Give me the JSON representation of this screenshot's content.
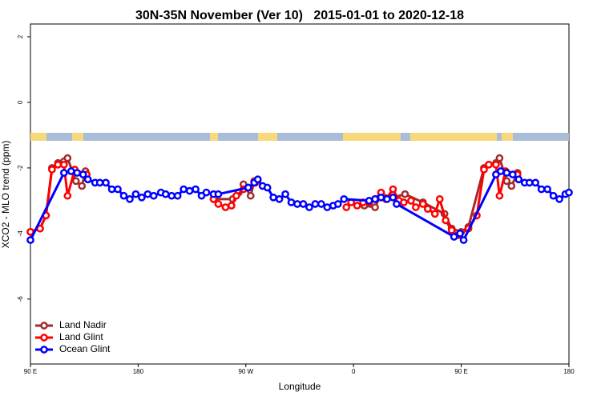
{
  "chart_data": {
    "type": "line",
    "title": "30N-35N November (Ver 10)   2015-01-01 to 2020-12-18",
    "x_label": "Longitude",
    "y_label": "XCO2 - MLO trend (ppm)",
    "xlim": [
      90,
      540
    ],
    "ylim": [
      -7.98,
      2.39
    ],
    "xticks": [
      {
        "value": 90,
        "label": "90 E"
      },
      180,
      {
        "value": 270,
        "label": "90 W"
      },
      {
        "value": 360,
        "label": "0"
      },
      {
        "value": 450,
        "label": "90 E"
      },
      {
        "value": 540,
        "label": "180"
      }
    ],
    "yticks": [
      2,
      0,
      -2,
      -4,
      -6
    ],
    "legend": "bottom-left",
    "series": [
      {
        "name": "Land Nadir",
        "color": "#a52a2a",
        "x": [
          90,
          98,
          103,
          108,
          113,
          118,
          121,
          128,
          133,
          136,
          null,
          243,
          259,
          264,
          268,
          274,
          277,
          null,
          369,
          378,
          383,
          393,
          403,
          418,
          436,
          442,
          450,
          456,
          469,
          473,
          479,
          482,
          488,
          492,
          497
        ],
        "values": [
          -3.95,
          -3.85,
          -3.45,
          -2.0,
          -1.85,
          -1.8,
          -1.7,
          -2.4,
          -2.55,
          -2.1,
          null,
          -2.95,
          -2.95,
          -2.75,
          -2.5,
          -2.85,
          -2.4,
          null,
          -3.15,
          -3.2,
          -2.8,
          -2.9,
          -2.8,
          -3.05,
          -3.4,
          -3.85,
          -3.95,
          -3.8,
          -2.0,
          -1.9,
          -1.85,
          -1.7,
          -2.4,
          -2.55,
          -2.15
        ]
      },
      {
        "name": "Land Glint",
        "color": "#ff0000",
        "x": [
          90,
          98,
          103,
          108,
          113,
          118,
          121,
          127,
          137,
          null,
          243,
          247,
          253,
          258,
          262,
          268,
          272,
          278,
          280,
          null,
          354,
          358,
          363,
          368,
          373,
          378,
          383,
          387,
          393,
          398,
          402,
          408,
          412,
          418,
          422,
          428,
          432,
          437,
          442,
          448,
          456,
          463,
          469,
          473,
          479,
          482,
          487,
          497
        ],
        "values": [
          -3.95,
          -3.85,
          -3.45,
          -2.05,
          -1.9,
          -1.9,
          -2.85,
          -2.05,
          -2.2,
          null,
          -2.95,
          -3.1,
          -3.2,
          -3.15,
          -2.85,
          -2.65,
          -2.6,
          -2.45,
          -2.35,
          null,
          -3.2,
          -3.05,
          -3.15,
          -3.05,
          -3.05,
          -2.95,
          -2.75,
          -2.95,
          -2.65,
          -3.0,
          -3.05,
          -3.0,
          -3.2,
          -3.1,
          -3.25,
          -3.4,
          -2.95,
          -3.6,
          -3.9,
          -4.05,
          -3.85,
          -3.45,
          -2.05,
          -1.9,
          -1.9,
          -2.85,
          -2.1,
          -2.2
        ]
      },
      {
        "name": "Ocean Glint",
        "color": "#0000ff",
        "x": [
          90,
          118,
          124,
          129,
          134,
          138,
          144,
          148,
          153,
          158,
          163,
          168,
          173,
          178,
          183,
          188,
          193,
          199,
          203,
          208,
          213,
          218,
          223,
          228,
          233,
          237,
          243,
          247,
          272,
          277,
          280,
          284,
          288,
          293,
          298,
          303,
          308,
          313,
          318,
          323,
          328,
          333,
          338,
          343,
          347,
          352,
          373,
          378,
          383,
          388,
          393,
          396,
          444,
          449,
          452,
          479,
          483,
          488,
          493,
          498,
          503,
          507,
          512,
          517,
          522,
          527,
          532,
          537,
          540
        ],
        "values": [
          -4.2,
          -2.15,
          -2.1,
          -2.15,
          -2.2,
          -2.35,
          -2.45,
          -2.45,
          -2.45,
          -2.65,
          -2.65,
          -2.85,
          -2.95,
          -2.8,
          -2.9,
          -2.8,
          -2.85,
          -2.75,
          -2.8,
          -2.85,
          -2.85,
          -2.65,
          -2.7,
          -2.65,
          -2.85,
          -2.75,
          -2.8,
          -2.8,
          -2.6,
          -2.45,
          -2.35,
          -2.55,
          -2.6,
          -2.9,
          -2.95,
          -2.8,
          -3.05,
          -3.1,
          -3.1,
          -3.2,
          -3.1,
          -3.1,
          -3.2,
          -3.15,
          -3.1,
          -2.95,
          -3.0,
          -2.95,
          -2.9,
          -2.95,
          -2.9,
          -3.1,
          -4.1,
          -4.0,
          -4.2,
          -2.2,
          -2.1,
          -2.15,
          -2.2,
          -2.35,
          -2.45,
          -2.45,
          -2.45,
          -2.65,
          -2.65,
          -2.85,
          -2.95,
          -2.8,
          -2.75
        ]
      }
    ]
  }
}
